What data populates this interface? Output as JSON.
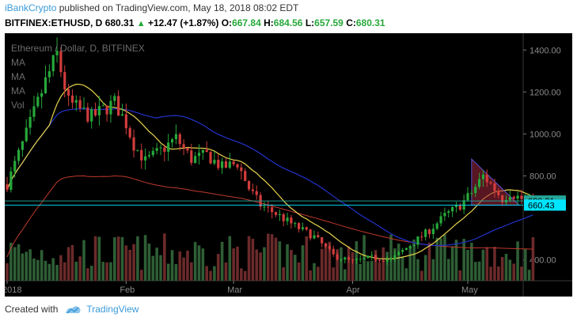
{
  "header": {
    "author": "iBankCrypto",
    "published_text": "published on TradingView.com, May 18, 2018 08:02 EDT",
    "symbol": "BITFINEX:ETHUSD, D",
    "last": "680.31",
    "change": "+12.47 (+1.87%)",
    "o_label": "O:",
    "o_value": "667.84",
    "h_label": "H:",
    "h_value": "684.56",
    "l_label": "L:",
    "l_value": "657.59",
    "c_label": "C:",
    "c_value": "680.31"
  },
  "legend": {
    "title": "Ethereum / Dollar, D, BITFINEX",
    "ind1": "MA",
    "ind2": "MA",
    "ind3": "MA",
    "ind4": "Vol"
  },
  "footer": {
    "created_with": "Created with",
    "brand": "TradingView"
  },
  "chart_data": {
    "type": "candlestick",
    "title": "Ethereum / Dollar, D, BITFINEX",
    "y_ticks": [
      "1400.00",
      "1200.00",
      "1000.00",
      "800.00",
      "400.00"
    ],
    "y_tick_values": [
      1400,
      1200,
      1000,
      800,
      400
    ],
    "x_ticks": [
      "2018",
      "Feb",
      "Mar",
      "Apr",
      "May"
    ],
    "x_tick_days": [
      0,
      31,
      59,
      90,
      120
    ],
    "price_labels": [
      {
        "text": "680.31",
        "value": 680.31,
        "color": "#26a69a"
      },
      {
        "text": "660.43",
        "value": 660.43,
        "color": "#00e5ff"
      }
    ],
    "ylim": [
      300,
      1450
    ],
    "colors": {
      "up": "#26a83a",
      "down": "#d23c3c",
      "vol_up": "#2e5e35",
      "vol_down": "#6b2a2a",
      "ma_fast": "#e8d44d",
      "ma_mid": "#2233cc",
      "ma_slow": "#c0392b",
      "triangle": "#a0283c"
    }
  }
}
